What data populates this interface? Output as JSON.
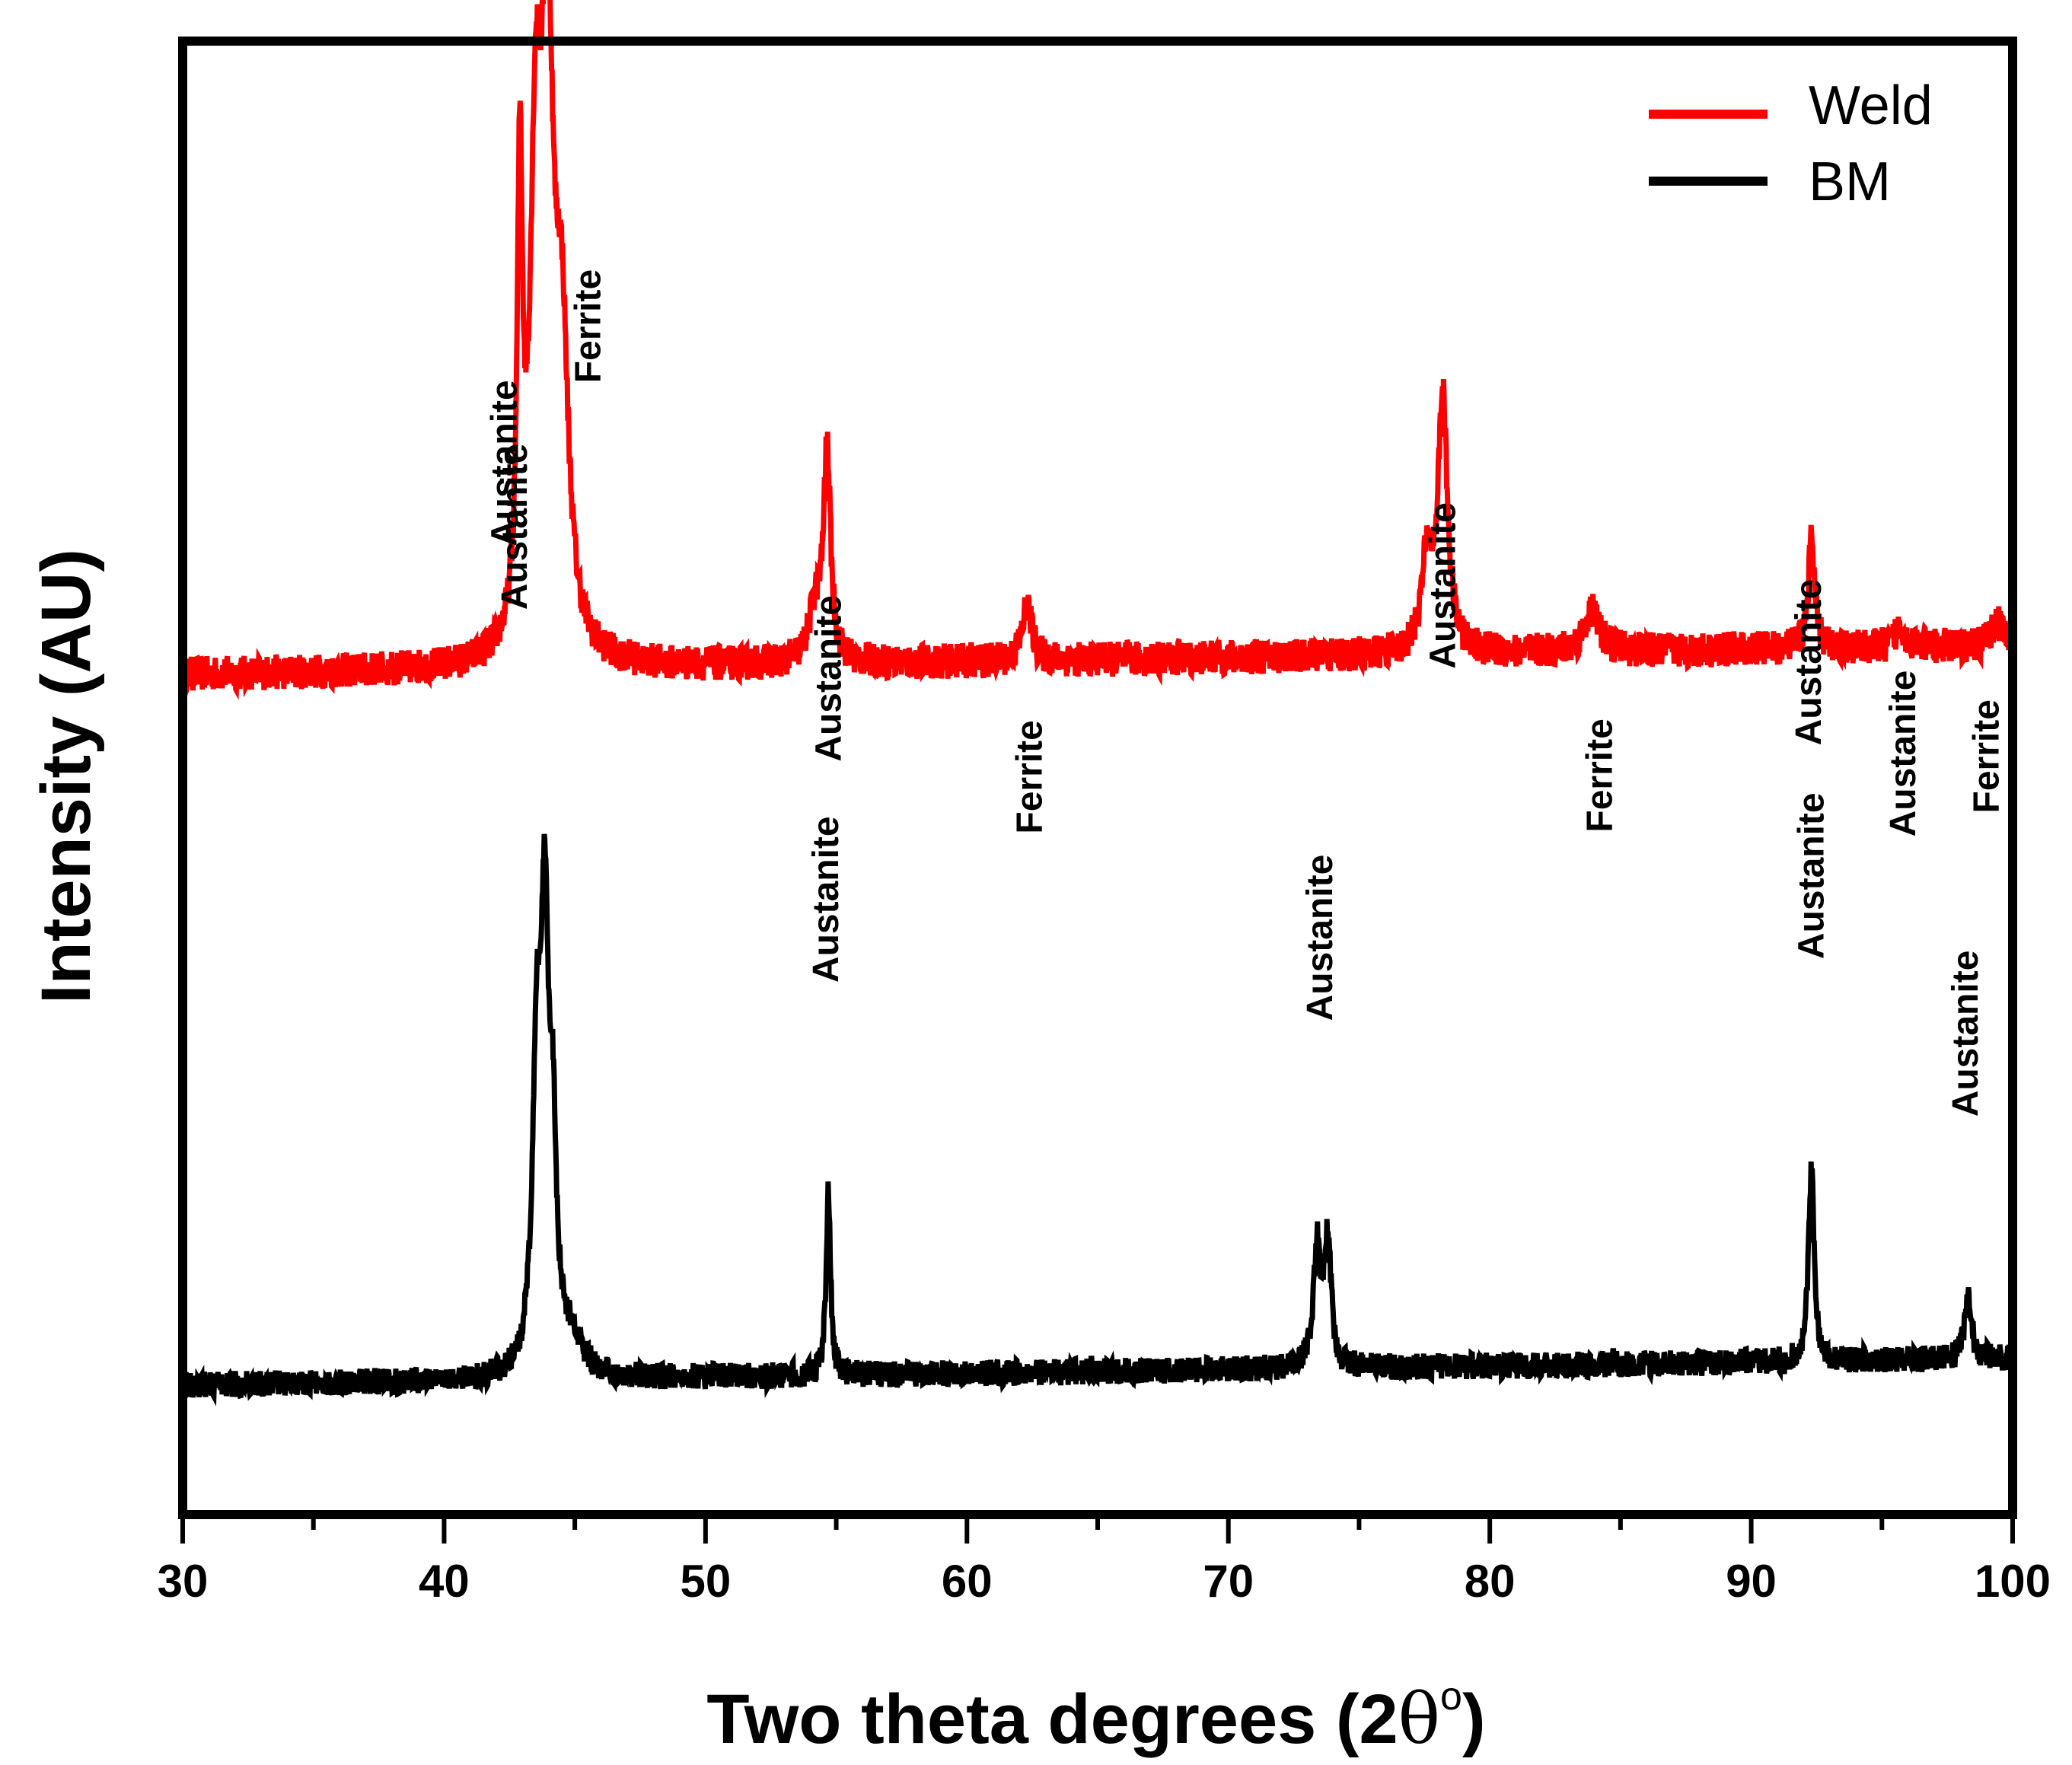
{
  "chart_data": {
    "type": "line",
    "title": "",
    "xlabel": "Two theta degrees (2θ°)",
    "xlabel_parts": {
      "main": "Two theta degrees (2",
      "theta": "θ",
      "sup": "o",
      "close": ")"
    },
    "ylabel": "Intensity (AU)",
    "xlim": [
      30,
      100
    ],
    "ylim": [
      0,
      100
    ],
    "x_ticks": [
      30,
      40,
      50,
      60,
      70,
      80,
      90,
      100
    ],
    "x_minor_ticks": [
      35,
      45,
      55,
      65,
      75,
      85,
      95
    ],
    "y_ticks": [],
    "grid": false,
    "legend_position": "top-right",
    "legend": [
      {
        "label": "Weld",
        "color": "#ff0000"
      },
      {
        "label": "BM",
        "color": "#000000"
      }
    ],
    "series": [
      {
        "name": "Weld",
        "color": "#ff0000",
        "baseline": {
          "start": 57.0,
          "end": 59.0
        },
        "noise": 1.2,
        "peaks": [
          {
            "x": 42.9,
            "height": 31.0,
            "width": 0.12
          },
          {
            "x": 43.5,
            "height": 29.5,
            "width": 0.25
          },
          {
            "x": 43.95,
            "height": 39.5,
            "width": 0.28
          },
          {
            "x": 44.5,
            "height": 19.0,
            "width": 0.3
          },
          {
            "x": 54.2,
            "height": 3.5,
            "width": 0.3
          },
          {
            "x": 54.65,
            "height": 14.0,
            "width": 0.16
          },
          {
            "x": 62.3,
            "height": 3.8,
            "width": 0.22
          },
          {
            "x": 77.6,
            "height": 6.0,
            "width": 0.25
          },
          {
            "x": 78.2,
            "height": 17.0,
            "width": 0.22
          },
          {
            "x": 83.9,
            "height": 2.8,
            "width": 0.35
          },
          {
            "x": 92.3,
            "height": 7.5,
            "width": 0.14
          },
          {
            "x": 95.7,
            "height": 1.6,
            "width": 0.2
          },
          {
            "x": 99.4,
            "height": 1.6,
            "width": 0.25
          }
        ],
        "annotations": [
          {
            "label": "Austanite",
            "x": 42.7,
            "label_bottom_y": 61.4
          },
          {
            "label": "Ferrite",
            "x": 45.5,
            "label_bottom_y": 76.8
          },
          {
            "label": "Austanite",
            "x": 54.7,
            "label_bottom_y": 51.1
          },
          {
            "label": "Ferrite",
            "x": 62.4,
            "label_bottom_y": 46.2
          },
          {
            "label": "Austanite",
            "x": 78.2,
            "label_bottom_y": 57.4
          },
          {
            "label": "Ferrite",
            "x": 84.2,
            "label_bottom_y": 46.3
          },
          {
            "label": "Austanite",
            "x": 92.2,
            "label_bottom_y": 52.2
          },
          {
            "label": "Austanite",
            "x": 95.8,
            "label_bottom_y": 46.0
          },
          {
            "label": "Ferrite",
            "x": 99.0,
            "label_bottom_y": 47.6
          }
        ]
      },
      {
        "name": "BM",
        "color": "#000000",
        "baseline": {
          "start": 8.8,
          "end": 10.6
        },
        "noise": 0.9,
        "peaks": [
          {
            "x": 43.55,
            "height": 20.0,
            "width": 0.2
          },
          {
            "x": 43.85,
            "height": 26.5,
            "width": 0.17
          },
          {
            "x": 44.15,
            "height": 14.0,
            "width": 0.18
          },
          {
            "x": 44.9,
            "height": 2.3,
            "width": 0.45
          },
          {
            "x": 54.7,
            "height": 12.5,
            "width": 0.1
          },
          {
            "x": 73.4,
            "height": 8.0,
            "width": 0.17
          },
          {
            "x": 73.8,
            "height": 8.6,
            "width": 0.15
          },
          {
            "x": 92.3,
            "height": 13.0,
            "width": 0.13
          },
          {
            "x": 98.3,
            "height": 4.0,
            "width": 0.16
          }
        ],
        "annotations": [
          {
            "label": "Austanite",
            "x": 42.3,
            "label_bottom_y": 65.7
          },
          {
            "label": "Austanite",
            "x": 54.6,
            "label_bottom_y": 36.1
          },
          {
            "label": "Austanite",
            "x": 73.5,
            "label_bottom_y": 33.5
          },
          {
            "label": "Austanite",
            "x": 92.3,
            "label_bottom_y": 37.7
          },
          {
            "label": "Austanite",
            "x": 98.2,
            "label_bottom_y": 27.0
          }
        ]
      }
    ]
  }
}
